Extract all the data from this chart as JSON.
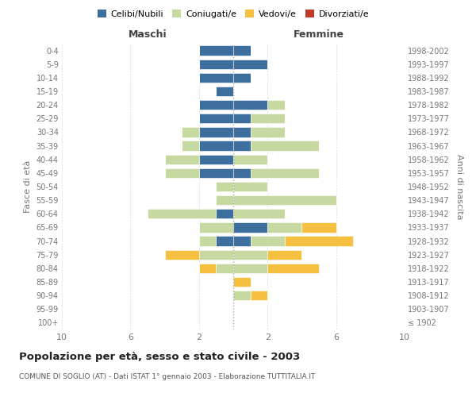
{
  "age_groups": [
    "100+",
    "95-99",
    "90-94",
    "85-89",
    "80-84",
    "75-79",
    "70-74",
    "65-69",
    "60-64",
    "55-59",
    "50-54",
    "45-49",
    "40-44",
    "35-39",
    "30-34",
    "25-29",
    "20-24",
    "15-19",
    "10-14",
    "5-9",
    "0-4"
  ],
  "birth_years": [
    "≤ 1902",
    "1903-1907",
    "1908-1912",
    "1913-1917",
    "1918-1922",
    "1923-1927",
    "1928-1932",
    "1933-1937",
    "1938-1942",
    "1943-1947",
    "1948-1952",
    "1953-1957",
    "1958-1962",
    "1963-1967",
    "1968-1972",
    "1973-1977",
    "1978-1982",
    "1983-1987",
    "1988-1992",
    "1993-1997",
    "1998-2002"
  ],
  "maschi": {
    "celibi": [
      0,
      0,
      0,
      0,
      0,
      0,
      1,
      0,
      1,
      0,
      0,
      2,
      2,
      2,
      2,
      2,
      2,
      1,
      2,
      2,
      2
    ],
    "coniugati": [
      0,
      0,
      0,
      0,
      1,
      2,
      1,
      2,
      4,
      1,
      1,
      2,
      2,
      1,
      1,
      0,
      0,
      0,
      0,
      0,
      0
    ],
    "vedovi": [
      0,
      0,
      0,
      0,
      1,
      2,
      0,
      0,
      0,
      0,
      0,
      0,
      0,
      0,
      0,
      0,
      0,
      0,
      0,
      0,
      0
    ],
    "divorziati": [
      0,
      0,
      0,
      0,
      0,
      0,
      0,
      0,
      0,
      0,
      0,
      0,
      0,
      0,
      0,
      0,
      0,
      0,
      0,
      0,
      0
    ]
  },
  "femmine": {
    "nubili": [
      0,
      0,
      0,
      0,
      0,
      0,
      1,
      2,
      0,
      0,
      0,
      1,
      0,
      1,
      1,
      1,
      2,
      0,
      1,
      2,
      1
    ],
    "coniugate": [
      0,
      0,
      1,
      0,
      2,
      2,
      2,
      2,
      3,
      6,
      2,
      4,
      2,
      4,
      2,
      2,
      1,
      0,
      0,
      0,
      0
    ],
    "vedove": [
      0,
      0,
      1,
      1,
      3,
      2,
      4,
      2,
      0,
      0,
      0,
      0,
      0,
      0,
      0,
      0,
      0,
      0,
      0,
      0,
      0
    ],
    "divorziate": [
      0,
      0,
      0,
      0,
      0,
      0,
      0,
      0,
      0,
      0,
      0,
      0,
      0,
      0,
      0,
      0,
      0,
      0,
      0,
      0,
      0
    ]
  },
  "color_celibi": "#3c6e9e",
  "color_coniugati": "#c5d9a0",
  "color_vedovi": "#f5c040",
  "color_divorziati": "#c0392b",
  "title": "Popolazione per età, sesso e stato civile - 2003",
  "subtitle": "COMUNE DI SOGLIO (AT) - Dati ISTAT 1° gennaio 2003 - Elaborazione TUTTITALIA.IT",
  "xlabel_left": "Maschi",
  "xlabel_right": "Femmine",
  "ylabel_left": "Fasce di età",
  "ylabel_right": "Anni di nascita",
  "xmax": 10,
  "background_color": "#ffffff"
}
